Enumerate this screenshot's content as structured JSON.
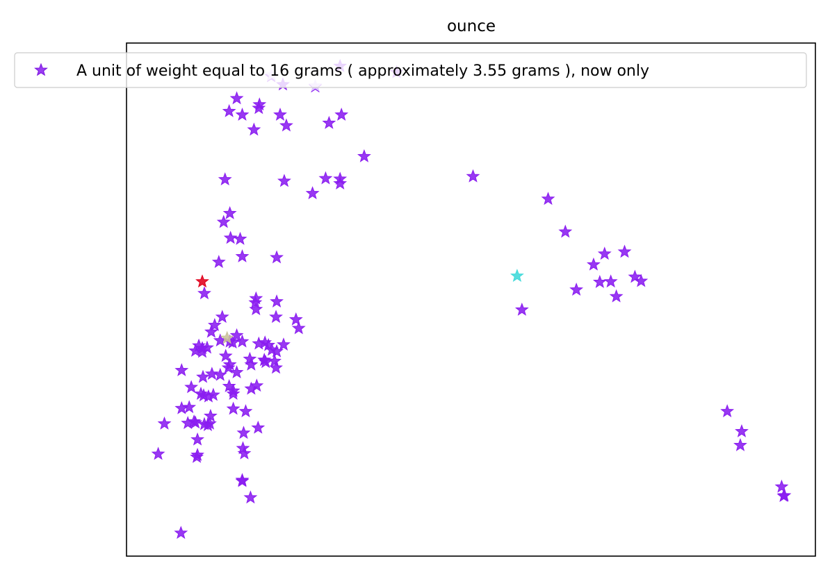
{
  "chart_data": {
    "type": "scatter",
    "title": "ounce",
    "xlabel": "",
    "ylabel": "",
    "xlim": [
      0,
      1000
    ],
    "ylim": [
      0,
      1000
    ],
    "grid": false,
    "axis_ticks": false,
    "legend": {
      "position": "upper-center",
      "label": "A unit of weight equal to 16 grams ( approximately 3.55 grams ), now only"
    },
    "series": [
      {
        "name": "A unit of weight equal to 16 grams ( approximately 3.55 grams ), now only",
        "marker": "star",
        "color": "#8a1cf0",
        "points": [
          [
            210,
            935
          ],
          [
            274,
            915
          ],
          [
            310,
            955
          ],
          [
            392,
            943
          ],
          [
            160,
            892
          ],
          [
            193,
            880
          ],
          [
            149,
            867
          ],
          [
            192,
            873
          ],
          [
            168,
            860
          ],
          [
            223,
            860
          ],
          [
            185,
            831
          ],
          [
            232,
            839
          ],
          [
            312,
            860
          ],
          [
            294,
            844
          ],
          [
            143,
            734
          ],
          [
            229,
            731
          ],
          [
            289,
            736
          ],
          [
            270,
            707
          ],
          [
            310,
            735
          ],
          [
            310,
            726
          ],
          [
            345,
            779
          ],
          [
            150,
            668
          ],
          [
            141,
            651
          ],
          [
            151,
            620
          ],
          [
            165,
            618
          ],
          [
            168,
            584
          ],
          [
            134,
            573
          ],
          [
            218,
            582
          ],
          [
            113,
            512
          ],
          [
            139,
            466
          ],
          [
            188,
            502
          ],
          [
            187,
            494
          ],
          [
            188,
            481
          ],
          [
            218,
            496
          ],
          [
            217,
            466
          ],
          [
            246,
            461
          ],
          [
            250,
            444
          ],
          [
            128,
            450
          ],
          [
            123,
            437
          ],
          [
            117,
            406
          ],
          [
            150,
            418
          ],
          [
            160,
            430
          ],
          [
            168,
            418
          ],
          [
            192,
            414
          ],
          [
            179,
            384
          ],
          [
            201,
            416
          ],
          [
            206,
            411
          ],
          [
            211,
            402
          ],
          [
            200,
            382
          ],
          [
            202,
            378
          ],
          [
            218,
            399
          ],
          [
            228,
            412
          ],
          [
            215,
            380
          ],
          [
            110,
            398
          ],
          [
            136,
            420
          ],
          [
            154,
            416
          ],
          [
            144,
            390
          ],
          [
            150,
            373
          ],
          [
            148,
            367
          ],
          [
            181,
            373
          ],
          [
            160,
            358
          ],
          [
            189,
            332
          ],
          [
            181,
            326
          ],
          [
            173,
            282
          ],
          [
            170,
            240
          ],
          [
            191,
            250
          ],
          [
            155,
            287
          ],
          [
            155,
            316
          ],
          [
            155,
            322
          ],
          [
            149,
            331
          ],
          [
            136,
            353
          ],
          [
            124,
            355
          ],
          [
            94,
            329
          ],
          [
            111,
            349
          ],
          [
            200,
            382
          ],
          [
            217,
            367
          ],
          [
            80,
            362
          ],
          [
            126,
            314
          ],
          [
            108,
            316
          ],
          [
            80,
            288
          ],
          [
            91,
            290
          ],
          [
            100,
            260
          ],
          [
            89,
            259
          ],
          [
            46,
            199
          ],
          [
            103,
            197
          ],
          [
            102,
            193
          ],
          [
            119,
            311
          ],
          [
            112,
            313
          ],
          [
            122,
            273
          ],
          [
            113,
            257
          ],
          [
            98,
            262
          ],
          [
            103,
            227
          ],
          [
            168,
            148
          ],
          [
            180,
            114
          ],
          [
            168,
            146
          ],
          [
            171,
            200
          ],
          [
            169,
            210
          ],
          [
            79,
            45
          ],
          [
            503,
            740
          ],
          [
            612,
            696
          ],
          [
            637,
            632
          ],
          [
            678,
            568
          ],
          [
            694,
            589
          ],
          [
            723,
            593
          ],
          [
            687,
            534
          ],
          [
            747,
            536
          ],
          [
            703,
            535
          ],
          [
            711,
            506
          ],
          [
            653,
            519
          ],
          [
            574,
            480
          ],
          [
            872,
            282
          ],
          [
            893,
            243
          ],
          [
            891,
            216
          ],
          [
            951,
            135
          ],
          [
            954,
            117
          ],
          [
            955,
            118
          ],
          [
            738,
            544
          ],
          [
            227,
            919
          ],
          [
            110,
            405
          ],
          [
            100,
            400
          ],
          [
            105,
            410
          ],
          [
            121,
            258
          ],
          [
            118,
            255
          ],
          [
            55,
            258
          ]
        ]
      },
      {
        "name": "",
        "marker": "star",
        "color": "#e0001b",
        "points": [
          [
            110,
            535
          ]
        ]
      },
      {
        "name": "",
        "marker": "star",
        "color": "#3fd9d9",
        "points": [
          [
            567,
            546
          ]
        ]
      },
      {
        "name": "",
        "marker": "star",
        "color": "#c9c29a",
        "points": [
          [
            146,
            425
          ]
        ]
      },
      {
        "name": "",
        "marker": "star",
        "color": "#e3d1ff",
        "points": [
          [
            211,
            938
          ],
          [
            274,
            917
          ]
        ]
      }
    ]
  }
}
